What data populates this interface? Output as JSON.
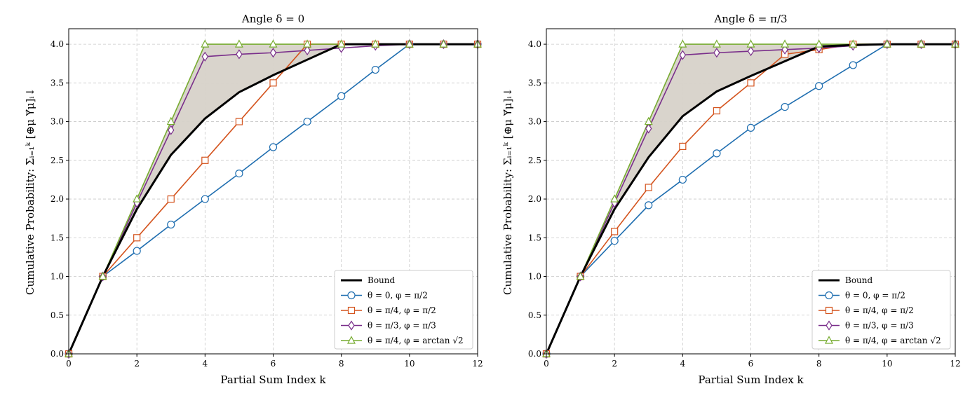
{
  "chart_data": [
    {
      "type": "line",
      "title": "Angle δ = 0",
      "xlabel": "Partial Sum Index k",
      "ylabel": "Cumulative Probability: Σᵢ₌₁ᵏ [⊕μ Υ⃗μ]ᵢ↓",
      "xlim": [
        0,
        12
      ],
      "ylim": [
        0,
        4.2
      ],
      "xticks": [
        0,
        2,
        4,
        6,
        8,
        10,
        12
      ],
      "yticks": [
        0.0,
        0.5,
        1.0,
        1.5,
        2.0,
        2.5,
        3.0,
        3.5,
        4.0
      ],
      "xtick_labels": [
        "0",
        "2",
        "4",
        "6",
        "8",
        "10",
        "12"
      ],
      "ytick_labels": [
        "0.0",
        "0.5",
        "1.0",
        "1.5",
        "2.0",
        "2.5",
        "3.0",
        "3.5",
        "4.0"
      ],
      "grid": true,
      "legend_position": "lower-right",
      "shaded_region": "between Bound and θ = π/4, φ = arctan √2",
      "bound": {
        "name": "Bound",
        "color": "#000000",
        "x": [
          0,
          1,
          2,
          3,
          4,
          5,
          6,
          7,
          8,
          9,
          10,
          11,
          12
        ],
        "values": [
          0,
          1.0,
          1.87,
          2.57,
          3.04,
          3.38,
          3.6,
          3.8,
          4.0,
          4.0,
          4.0,
          4.0,
          4.0
        ]
      },
      "series": [
        {
          "name": "θ = 0, φ = π/2",
          "color": "#1f6eb0",
          "marker": "circle",
          "x": [
            0,
            1,
            2,
            3,
            4,
            5,
            6,
            7,
            8,
            9,
            10,
            11,
            12
          ],
          "values": [
            0,
            1.0,
            1.33,
            1.67,
            2.0,
            2.33,
            2.67,
            3.0,
            3.33,
            3.67,
            4.0,
            4.0,
            4.0
          ]
        },
        {
          "name": "θ = π/4, φ = π/2",
          "color": "#d4541e",
          "marker": "square",
          "x": [
            0,
            1,
            2,
            3,
            4,
            5,
            6,
            7,
            8,
            9,
            10,
            11,
            12
          ],
          "values": [
            0,
            1.0,
            1.5,
            2.0,
            2.5,
            3.0,
            3.5,
            4.0,
            4.0,
            4.0,
            4.0,
            4.0,
            4.0
          ]
        },
        {
          "name": "θ = π/3, φ = π/3",
          "color": "#7a2f8b",
          "marker": "diamond",
          "x": [
            0,
            1,
            2,
            3,
            4,
            5,
            6,
            7,
            8,
            9,
            10,
            11,
            12
          ],
          "values": [
            0,
            1.0,
            1.95,
            2.89,
            3.84,
            3.87,
            3.89,
            3.92,
            3.95,
            3.98,
            4.0,
            4.0,
            4.0
          ]
        },
        {
          "name": "θ = π/4, φ = arctan √2",
          "color": "#77ac30",
          "marker": "triangle",
          "x": [
            0,
            1,
            2,
            3,
            4,
            5,
            6,
            7,
            8,
            9,
            10,
            11,
            12
          ],
          "values": [
            0,
            1.0,
            2.0,
            3.0,
            4.0,
            4.0,
            4.0,
            4.0,
            4.0,
            4.0,
            4.0,
            4.0,
            4.0
          ]
        }
      ]
    },
    {
      "type": "line",
      "title": "Angle δ = π/3",
      "xlabel": "Partial Sum Index k",
      "ylabel": "Cumulative Probability: Σᵢ₌₁ᵏ [⊕μ Υ⃗μ]ᵢ↓",
      "xlim": [
        0,
        12
      ],
      "ylim": [
        0,
        4.2
      ],
      "xticks": [
        0,
        2,
        4,
        6,
        8,
        10,
        12
      ],
      "yticks": [
        0.0,
        0.5,
        1.0,
        1.5,
        2.0,
        2.5,
        3.0,
        3.5,
        4.0
      ],
      "xtick_labels": [
        "0",
        "2",
        "4",
        "6",
        "8",
        "10",
        "12"
      ],
      "ytick_labels": [
        "0.0",
        "0.5",
        "1.0",
        "1.5",
        "2.0",
        "2.5",
        "3.0",
        "3.5",
        "4.0"
      ],
      "grid": true,
      "legend_position": "lower-right",
      "shaded_region": "between Bound and θ = π/4, φ = arctan √2",
      "bound": {
        "name": "Bound",
        "color": "#000000",
        "x": [
          0,
          1,
          2,
          3,
          4,
          5,
          6,
          7,
          8,
          9,
          10,
          11,
          12
        ],
        "values": [
          0,
          1.0,
          1.87,
          2.54,
          3.07,
          3.39,
          3.59,
          3.78,
          3.97,
          3.99,
          4.0,
          4.0,
          4.0
        ]
      },
      "series": [
        {
          "name": "θ = 0, φ = π/2",
          "color": "#1f6eb0",
          "marker": "circle",
          "x": [
            0,
            1,
            2,
            3,
            4,
            5,
            6,
            7,
            8,
            9,
            10,
            11,
            12
          ],
          "values": [
            0,
            1.0,
            1.46,
            1.92,
            2.25,
            2.59,
            2.92,
            3.19,
            3.46,
            3.73,
            4.0,
            4.0,
            4.0
          ]
        },
        {
          "name": "θ = π/4, φ = π/2",
          "color": "#d4541e",
          "marker": "square",
          "x": [
            0,
            1,
            2,
            3,
            4,
            5,
            6,
            7,
            8,
            9,
            10,
            11,
            12
          ],
          "values": [
            0,
            1.0,
            1.58,
            2.15,
            2.68,
            3.14,
            3.5,
            3.87,
            3.93,
            4.0,
            4.0,
            4.0,
            4.0
          ]
        },
        {
          "name": "θ = π/3, φ = π/3",
          "color": "#7a2f8b",
          "marker": "diamond",
          "x": [
            0,
            1,
            2,
            3,
            4,
            5,
            6,
            7,
            8,
            9,
            10,
            11,
            12
          ],
          "values": [
            0,
            1.0,
            1.95,
            2.91,
            3.86,
            3.89,
            3.91,
            3.93,
            3.95,
            3.98,
            4.0,
            4.0,
            4.0
          ]
        },
        {
          "name": "θ = π/4, φ = arctan √2",
          "color": "#77ac30",
          "marker": "triangle",
          "x": [
            0,
            1,
            2,
            3,
            4,
            5,
            6,
            7,
            8,
            9,
            10,
            11,
            12
          ],
          "values": [
            0,
            1.0,
            2.0,
            3.0,
            4.0,
            4.0,
            4.0,
            4.0,
            4.0,
            4.0,
            4.0,
            4.0,
            4.0
          ]
        }
      ]
    }
  ],
  "style": {
    "grid_color": "#c8c8c8",
    "shade_color": "#d7d2c9",
    "axis_color": "#000000",
    "legend_border_color": "#cccccc"
  }
}
